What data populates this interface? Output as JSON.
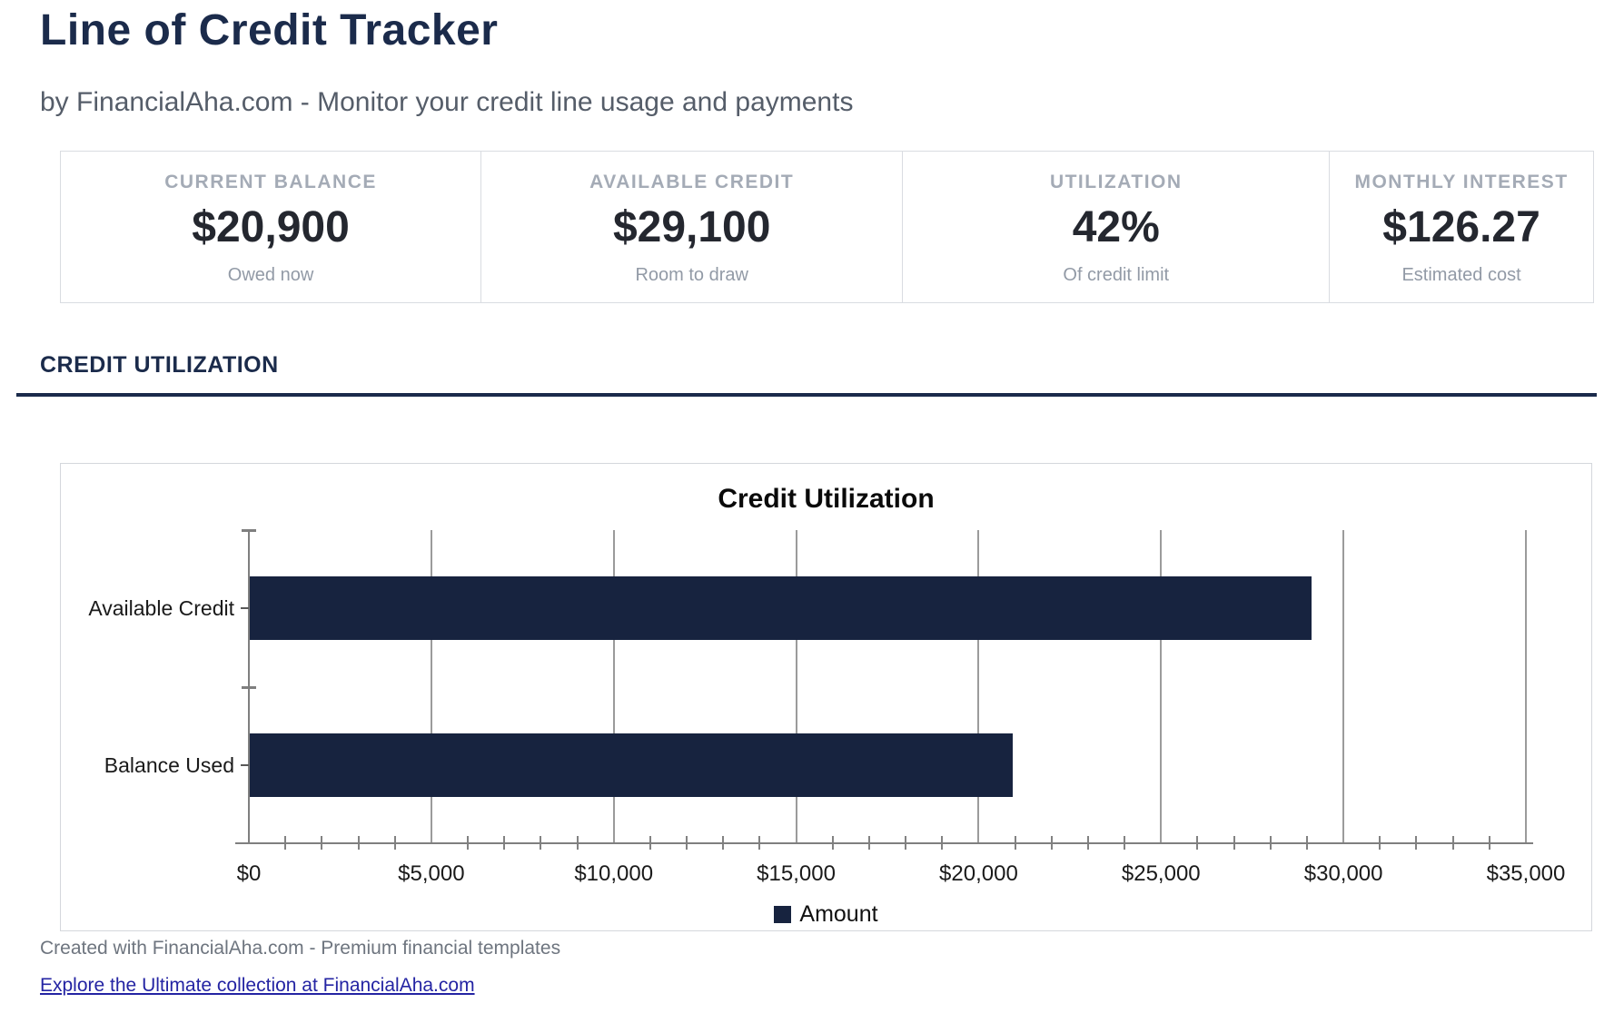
{
  "header": {
    "title": "Line of Credit Tracker",
    "subtitle": "by FinancialAha.com - Monitor your credit line usage and payments"
  },
  "stats": [
    {
      "label": "CURRENT BALANCE",
      "value": "$20,900",
      "sublabel": "Owed now"
    },
    {
      "label": "AVAILABLE CREDIT",
      "value": "$29,100",
      "sublabel": "Room to draw"
    },
    {
      "label": "UTILIZATION",
      "value": "42%",
      "sublabel": "Of credit limit"
    },
    {
      "label": "MONTHLY INTEREST",
      "value": "$126.27",
      "sublabel": "Estimated cost"
    }
  ],
  "section": {
    "title": "CREDIT UTILIZATION"
  },
  "chart_data": {
    "type": "bar",
    "orientation": "horizontal",
    "title": "Credit Utilization",
    "categories": [
      "Available Credit",
      "Balance Used"
    ],
    "values": [
      29100,
      20900
    ],
    "series_name": "Amount",
    "legend": [
      "Amount"
    ],
    "legend_position": "bottom",
    "xlim": [
      0,
      35000
    ],
    "x_tick_interval": 5000,
    "x_minor_tick_interval": 1000,
    "x_tick_labels": [
      "$0",
      "$5,000",
      "$10,000",
      "$15,000",
      "$20,000",
      "$25,000",
      "$30,000",
      "$35,000"
    ],
    "grid": true,
    "bar_color": "#17233f"
  },
  "footer": {
    "credit": "Created with FinancialAha.com - Premium financial templates",
    "link": "Explore the Ultimate collection at FinancialAha.com"
  },
  "colors": {
    "accent_navy": "#1b2b4b",
    "bar_navy": "#17233f",
    "link_blue": "#2424a3"
  }
}
